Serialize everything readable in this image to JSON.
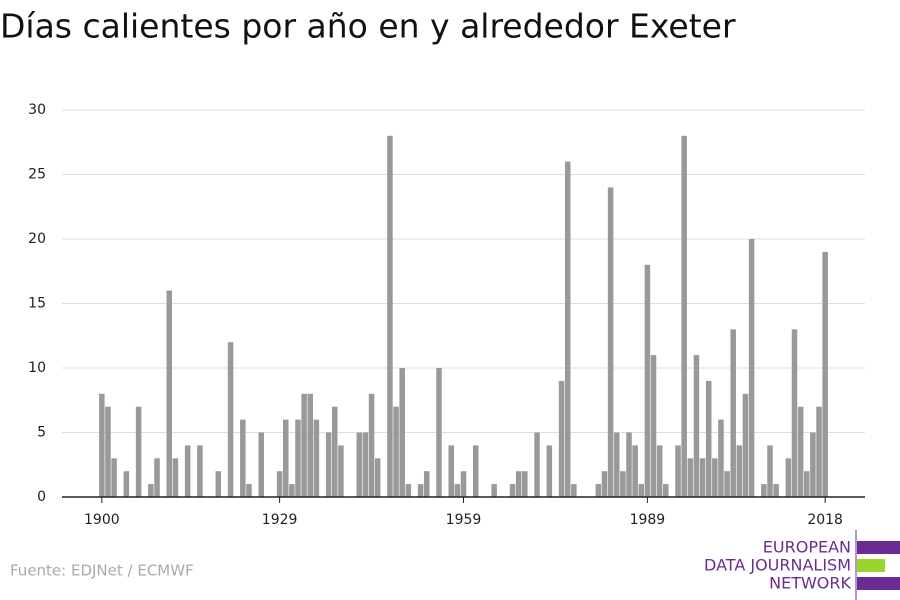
{
  "chart_data": {
    "type": "bar",
    "title": "Días calientes por año en y alrededor Exeter",
    "source": "Fuente: EDJNet / ECMWF",
    "logo": [
      "EUROPEAN",
      "DATA JOURNALISM",
      "NETWORK"
    ],
    "color": "#999999",
    "x": [
      1900,
      1901,
      1902,
      1903,
      1904,
      1905,
      1906,
      1907,
      1908,
      1909,
      1910,
      1911,
      1912,
      1913,
      1914,
      1915,
      1916,
      1917,
      1918,
      1919,
      1920,
      1921,
      1922,
      1923,
      1924,
      1925,
      1926,
      1927,
      1928,
      1929,
      1930,
      1931,
      1932,
      1933,
      1934,
      1935,
      1936,
      1937,
      1938,
      1939,
      1940,
      1941,
      1942,
      1943,
      1944,
      1945,
      1946,
      1947,
      1948,
      1949,
      1950,
      1951,
      1952,
      1953,
      1954,
      1955,
      1956,
      1957,
      1958,
      1959,
      1960,
      1961,
      1962,
      1963,
      1964,
      1965,
      1966,
      1967,
      1968,
      1969,
      1970,
      1971,
      1972,
      1973,
      1974,
      1975,
      1976,
      1977,
      1978,
      1979,
      1980,
      1981,
      1982,
      1983,
      1984,
      1985,
      1986,
      1987,
      1988,
      1989,
      1990,
      1991,
      1992,
      1993,
      1994,
      1995,
      1996,
      1997,
      1998,
      1999,
      2000,
      2001,
      2002,
      2003,
      2004,
      2005,
      2006,
      2007,
      2008,
      2009,
      2010,
      2011,
      2012,
      2013,
      2014,
      2015,
      2016,
      2017,
      2018
    ],
    "values": [
      8,
      7,
      3,
      0,
      2,
      0,
      7,
      0,
      1,
      3,
      0,
      16,
      3,
      0,
      4,
      0,
      4,
      0,
      0,
      2,
      0,
      12,
      0,
      6,
      1,
      0,
      5,
      0,
      0,
      2,
      6,
      1,
      6,
      8,
      8,
      6,
      0,
      5,
      7,
      4,
      0,
      0,
      5,
      5,
      8,
      3,
      0,
      28,
      7,
      10,
      1,
      0,
      1,
      2,
      0,
      10,
      0,
      4,
      1,
      2,
      0,
      4,
      0,
      0,
      1,
      0,
      0,
      1,
      2,
      2,
      0,
      5,
      0,
      4,
      0,
      9,
      26,
      1,
      0,
      0,
      0,
      1,
      2,
      24,
      5,
      2,
      5,
      4,
      1,
      18,
      11,
      4,
      1,
      0,
      4,
      28,
      3,
      11,
      3,
      9,
      3,
      6,
      2,
      13,
      4,
      8,
      20,
      0,
      1,
      4,
      1,
      0,
      3,
      13,
      7,
      2,
      5,
      7,
      19
    ],
    "xlim": [
      1893.5,
      2024.5
    ],
    "xticks": [
      1900,
      1929,
      1959,
      1989,
      2018
    ],
    "ylim": [
      0,
      30
    ],
    "yticks": [
      0,
      5,
      10,
      15,
      20,
      25,
      30
    ],
    "grid": true
  }
}
